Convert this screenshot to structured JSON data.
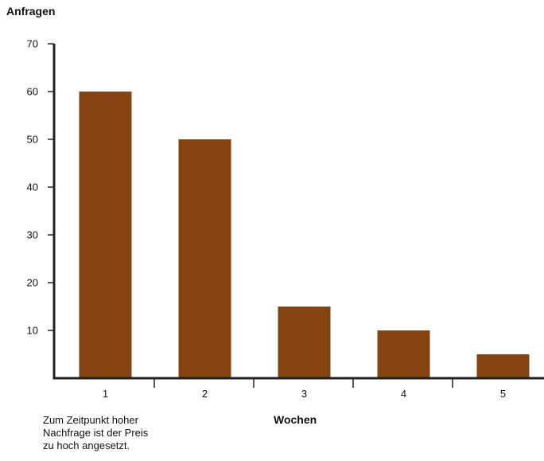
{
  "colors": {
    "bar": "#854312",
    "axis": "#222222"
  },
  "chart_data": {
    "type": "bar",
    "categories": [
      "1",
      "2",
      "3",
      "4",
      "5"
    ],
    "values": [
      60,
      50,
      15,
      10,
      5
    ],
    "title": "",
    "xlabel": "Wochen",
    "ylabel": "Anfragen",
    "ylim": [
      0,
      70
    ],
    "yticks": [
      10,
      20,
      30,
      40,
      50,
      60,
      70
    ],
    "grid": false,
    "legend": "none",
    "annotation": [
      "Zum Zeitpunkt hoher",
      "Nachfrage ist der Preis",
      "zu hoch angesetzt."
    ]
  }
}
